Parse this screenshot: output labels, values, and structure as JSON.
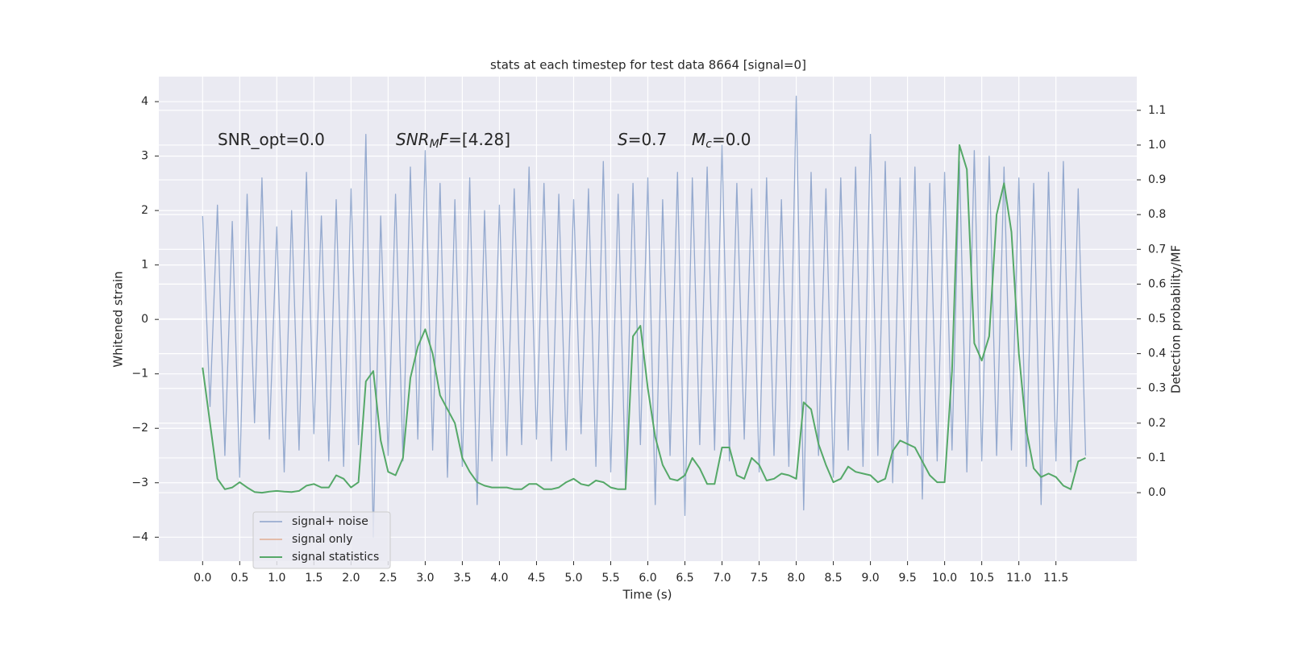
{
  "chart_data": {
    "type": "line",
    "title": "stats at each timestep for test data 8664 [signal=0]",
    "xlabel": "Time (s)",
    "ylabel": "Whitened strain",
    "y2label": "Detection probability/MF",
    "annotations": [
      [
        {
          "text": "SNR_opt=0.0"
        }
      ],
      [
        {
          "text": "SNR",
          "style": "italic"
        },
        {
          "text": "M",
          "style": "italic-sub"
        },
        {
          "text": "F",
          "style": "italic"
        },
        {
          "text": "=[4.28]"
        }
      ],
      [
        {
          "text": "S",
          "style": "italic"
        },
        {
          "text": "=0.7"
        }
      ],
      [
        {
          "text": "M",
          "style": "italic"
        },
        {
          "text": "c",
          "style": "italic-sub"
        },
        {
          "text": "=0.0"
        }
      ]
    ],
    "x": [
      0.0,
      0.1,
      0.2,
      0.3,
      0.4,
      0.5,
      0.6,
      0.7,
      0.8,
      0.9,
      1.0,
      1.1,
      1.2,
      1.3,
      1.4,
      1.5,
      1.6,
      1.7,
      1.8,
      1.9,
      2.0,
      2.1,
      2.2,
      2.3,
      2.4,
      2.5,
      2.6,
      2.7,
      2.8,
      2.9,
      3.0,
      3.1,
      3.2,
      3.3,
      3.4,
      3.5,
      3.6,
      3.7,
      3.8,
      3.9,
      4.0,
      4.1,
      4.2,
      4.3,
      4.4,
      4.5,
      4.6,
      4.7,
      4.8,
      4.9,
      5.0,
      5.1,
      5.2,
      5.3,
      5.4,
      5.5,
      5.6,
      5.7,
      5.8,
      5.9,
      6.0,
      6.1,
      6.2,
      6.3,
      6.4,
      6.5,
      6.6,
      6.7,
      6.8,
      6.9,
      7.0,
      7.1,
      7.2,
      7.3,
      7.4,
      7.5,
      7.6,
      7.7,
      7.8,
      7.9,
      8.0,
      8.1,
      8.2,
      8.3,
      8.4,
      8.5,
      8.6,
      8.7,
      8.8,
      8.9,
      9.0,
      9.1,
      9.2,
      9.3,
      9.4,
      9.5,
      9.6,
      9.7,
      9.8,
      9.9,
      10.0,
      10.1,
      10.2,
      10.3,
      10.4,
      10.5,
      10.6,
      10.7,
      10.8,
      10.9,
      11.0,
      11.1,
      11.2,
      11.3,
      11.4,
      11.5,
      11.6,
      11.7,
      11.8,
      11.9
    ],
    "series": [
      {
        "name": "signal+ noise",
        "color": "#4c72b0",
        "axis": "y",
        "values": [
          1.9,
          -1.6,
          2.1,
          -2.5,
          1.8,
          -2.9,
          2.3,
          -1.9,
          2.6,
          -2.2,
          1.7,
          -2.8,
          2.0,
          -2.4,
          2.7,
          -2.1,
          1.9,
          -2.6,
          2.2,
          -2.7,
          2.4,
          -2.3,
          3.4,
          -4.0,
          1.9,
          -2.5,
          2.3,
          -2.6,
          2.8,
          -2.2,
          3.1,
          -2.4,
          2.5,
          -2.9,
          2.2,
          -2.7,
          2.6,
          -3.4,
          2.0,
          -2.6,
          2.1,
          -2.5,
          2.4,
          -2.3,
          2.8,
          -2.2,
          2.5,
          -2.6,
          2.3,
          -2.4,
          2.2,
          -2.1,
          2.4,
          -2.7,
          2.9,
          -2.8,
          2.3,
          -3.1,
          2.5,
          -2.3,
          2.6,
          -3.4,
          2.2,
          -2.5,
          2.7,
          -3.6,
          2.6,
          -2.3,
          2.8,
          -2.4,
          3.2,
          -2.6,
          2.5,
          -2.2,
          2.4,
          -2.8,
          2.6,
          -2.5,
          2.2,
          -2.7,
          4.1,
          -3.5,
          2.7,
          -2.5,
          2.4,
          -2.9,
          2.6,
          -2.4,
          2.8,
          -2.7,
          3.4,
          -2.5,
          2.9,
          -3.0,
          2.6,
          -2.5,
          2.8,
          -3.3,
          2.5,
          -2.6,
          2.7,
          -2.4,
          2.9,
          -2.8,
          3.1,
          -2.6,
          3.0,
          -2.5,
          2.8,
          -2.4,
          2.6,
          -2.7,
          2.5,
          -3.4,
          2.7,
          -2.6,
          2.9,
          -2.8,
          2.4,
          -2.5
        ]
      },
      {
        "name": "signal only",
        "color": "#dd8452",
        "axis": "y"
      },
      {
        "name": "signal statistics",
        "color": "#55a868",
        "axis": "y2",
        "values": [
          0.36,
          0.2,
          0.04,
          0.01,
          0.015,
          0.03,
          0.015,
          0.002,
          0.0,
          0.003,
          0.005,
          0.003,
          0.002,
          0.005,
          0.02,
          0.025,
          0.015,
          0.015,
          0.05,
          0.04,
          0.015,
          0.03,
          0.32,
          0.35,
          0.15,
          0.06,
          0.05,
          0.1,
          0.33,
          0.42,
          0.47,
          0.4,
          0.28,
          0.24,
          0.2,
          0.1,
          0.06,
          0.03,
          0.02,
          0.015,
          0.015,
          0.015,
          0.01,
          0.01,
          0.025,
          0.025,
          0.01,
          0.01,
          0.015,
          0.03,
          0.04,
          0.025,
          0.02,
          0.035,
          0.03,
          0.015,
          0.01,
          0.01,
          0.45,
          0.48,
          0.3,
          0.16,
          0.08,
          0.04,
          0.035,
          0.05,
          0.1,
          0.07,
          0.025,
          0.025,
          0.13,
          0.13,
          0.05,
          0.04,
          0.1,
          0.08,
          0.035,
          0.04,
          0.055,
          0.05,
          0.04,
          0.26,
          0.24,
          0.14,
          0.08,
          0.03,
          0.04,
          0.075,
          0.06,
          0.055,
          0.05,
          0.03,
          0.04,
          0.12,
          0.15,
          0.14,
          0.13,
          0.09,
          0.05,
          0.03,
          0.03,
          0.35,
          1.0,
          0.93,
          0.43,
          0.38,
          0.45,
          0.8,
          0.89,
          0.75,
          0.4,
          0.18,
          0.07,
          0.045,
          0.055,
          0.045,
          0.02,
          0.01,
          0.09,
          0.1
        ]
      }
    ],
    "xlim": [
      -0.59,
      12.59
    ],
    "ylim": [
      -4.44,
      4.46
    ],
    "y2lim": [
      -0.197,
      1.197
    ],
    "xticks": [
      {
        "value": 0,
        "label": "0.0"
      },
      {
        "value": 0.5,
        "label": "0.5"
      },
      {
        "value": 1,
        "label": "1.0"
      },
      {
        "value": 1.5,
        "label": "1.5"
      },
      {
        "value": 2,
        "label": "2.0"
      },
      {
        "value": 2.5,
        "label": "2.5"
      },
      {
        "value": 3,
        "label": "3.0"
      },
      {
        "value": 3.5,
        "label": "3.5"
      },
      {
        "value": 4,
        "label": "4.0"
      },
      {
        "value": 4.5,
        "label": "4.5"
      },
      {
        "value": 5,
        "label": "5.0"
      },
      {
        "value": 5.5,
        "label": "5.5"
      },
      {
        "value": 6,
        "label": "6.0"
      },
      {
        "value": 6.5,
        "label": "6.5"
      },
      {
        "value": 7,
        "label": "7.0"
      },
      {
        "value": 7.5,
        "label": "7.5"
      },
      {
        "value": 8,
        "label": "8.0"
      },
      {
        "value": 8.5,
        "label": "8.5"
      },
      {
        "value": 9,
        "label": "9.0"
      },
      {
        "value": 9.5,
        "label": "9.5"
      },
      {
        "value": 10,
        "label": "10.0"
      },
      {
        "value": 10.5,
        "label": "10.5"
      },
      {
        "value": 11,
        "label": "11.0"
      },
      {
        "value": 11.5,
        "label": "11.5"
      }
    ],
    "yticks": [
      {
        "value": -4,
        "label": "−4"
      },
      {
        "value": -3,
        "label": "−3"
      },
      {
        "value": -2,
        "label": "−2"
      },
      {
        "value": -1,
        "label": "−1"
      },
      0,
      1,
      2,
      3,
      4
    ],
    "y2ticks": [
      {
        "value": 0,
        "label": "0.0"
      },
      {
        "value": 0.1,
        "label": "0.1"
      },
      {
        "value": 0.2,
        "label": "0.2"
      },
      {
        "value": 0.3,
        "label": "0.3"
      },
      {
        "value": 0.4,
        "label": "0.4"
      },
      {
        "value": 0.5,
        "label": "0.5"
      },
      {
        "value": 0.6,
        "label": "0.6"
      },
      {
        "value": 0.7,
        "label": "0.7"
      },
      {
        "value": 0.8,
        "label": "0.8"
      },
      {
        "value": 0.9,
        "label": "0.9"
      },
      {
        "value": 1,
        "label": "1.0"
      },
      {
        "value": 1.1,
        "label": "1.1"
      }
    ],
    "grid": true,
    "legend": "lower left",
    "background": "#eaeaf2"
  }
}
